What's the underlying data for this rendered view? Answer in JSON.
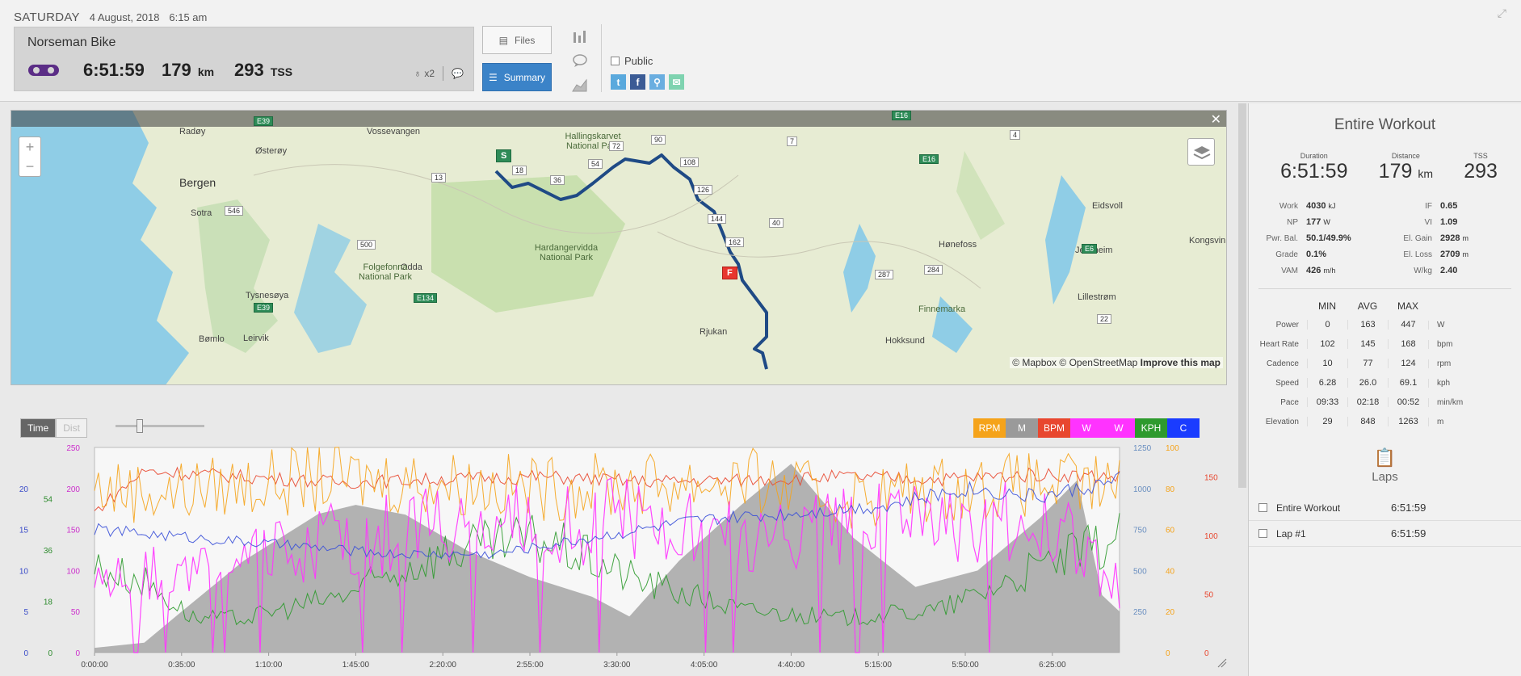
{
  "header": {
    "day": "SATURDAY",
    "date": "4 August, 2018",
    "time": "6:15 am",
    "workout_title": "Norseman Bike",
    "duration": "6:51:59",
    "distance": "179",
    "distance_unit": "km",
    "tss": "293",
    "tss_unit": "TSS",
    "equipment_count": "x2",
    "files_label": "Files",
    "summary_label": "Summary",
    "public_label": "Public"
  },
  "map": {
    "attribution_mapbox": "© Mapbox",
    "attribution_osm": "© OpenStreetMap",
    "improve_label": "Improve this map",
    "zoom_in": "+",
    "zoom_out": "−",
    "close": "✕",
    "places": [
      "Bergen",
      "Vossevangen",
      "Odda",
      "Rjukan",
      "Hønefoss",
      "Eidsvoll",
      "Jessheim",
      "Kongsvin",
      "Lillestrøm",
      "Østerøy",
      "Sotra",
      "Tysnesøya",
      "Leirvik",
      "Radøy",
      "Bømlo",
      "Hokksund"
    ],
    "parks": [
      "Hallingskarvet National Park",
      "Hardangervidda National Park",
      "Folgefonna National Park",
      "Finnemarka"
    ],
    "roads": [
      "E39",
      "E16",
      "E134",
      "E6",
      "13",
      "546",
      "500",
      "7",
      "4",
      "40",
      "287",
      "284",
      "22",
      "18",
      "36",
      "54",
      "72",
      "90",
      "108",
      "126",
      "144",
      "162"
    ],
    "start_marker": "S",
    "finish_marker": "F"
  },
  "chart": {
    "time_label": "Time",
    "dist_label": "Dist",
    "legend": [
      {
        "label": "RPM",
        "color": "#f5a31a"
      },
      {
        "label": "M",
        "color": "#9a9a9a"
      },
      {
        "label": "BPM",
        "color": "#e8472f"
      },
      {
        "label": "W",
        "color": "#ff33ff"
      },
      {
        "label": "W",
        "color": "#ff33ff"
      },
      {
        "label": "KPH",
        "color": "#2e9a2e"
      },
      {
        "label": "C",
        "color": "#1a3cff"
      }
    ]
  },
  "chart_data": {
    "type": "line",
    "x_ticks": [
      "0:00:00",
      "0:35:00",
      "1:10:00",
      "1:45:00",
      "2:20:00",
      "2:55:00",
      "3:30:00",
      "4:05:00",
      "4:40:00",
      "5:15:00",
      "5:50:00",
      "6:25:00"
    ],
    "x_range_min": [
      0,
      412
    ],
    "axes": [
      {
        "name": "C",
        "color": "#3a4cc8",
        "ticks": [
          "0",
          "5",
          "10",
          "15",
          "20"
        ],
        "range": [
          0,
          25
        ]
      },
      {
        "name": "KPH",
        "color": "#2e8b2e",
        "ticks": [
          "0",
          "18",
          "36",
          "54"
        ],
        "range": [
          0,
          72
        ]
      },
      {
        "name": "W",
        "color": "#cc2ecc",
        "ticks": [
          "0",
          "50",
          "100",
          "150",
          "200",
          "250"
        ],
        "range": [
          0,
          250
        ]
      },
      {
        "name": "M",
        "color": "#6a8fc0",
        "ticks": [
          "250",
          "500",
          "750",
          "1000",
          "1250"
        ],
        "range": [
          0,
          1250
        ]
      },
      {
        "name": "RPM",
        "color": "#f5a31a",
        "ticks": [
          "0",
          "20",
          "40",
          "60",
          "80",
          "100"
        ],
        "range": [
          0,
          100
        ]
      },
      {
        "name": "BPM",
        "color": "#e8472f",
        "ticks": [
          "0",
          "50",
          "100",
          "150"
        ],
        "range": [
          0,
          175
        ]
      }
    ],
    "series": [
      {
        "name": "M",
        "color": "#9a9a9a",
        "x": [
          0,
          20,
          35,
          60,
          90,
          105,
          125,
          150,
          175,
          200,
          215,
          235,
          260,
          280,
          305,
          330,
          355,
          380,
          395,
          405,
          412
        ],
        "y": [
          29,
          60,
          250,
          560,
          845,
          900,
          840,
          620,
          460,
          340,
          220,
          560,
          900,
          1150,
          700,
          400,
          500,
          820,
          1050,
          350,
          250
        ]
      },
      {
        "name": "BPM",
        "color": "#e8472f",
        "x": [
          0,
          20,
          60,
          100,
          140,
          180,
          220,
          260,
          300,
          340,
          380,
          412
        ],
        "y": [
          120,
          155,
          150,
          145,
          148,
          150,
          146,
          147,
          150,
          148,
          152,
          150
        ]
      },
      {
        "name": "RPM",
        "color": "#f5a31a",
        "x": [
          0,
          30,
          60,
          100,
          140,
          180,
          220,
          260,
          300,
          340,
          380,
          412
        ],
        "y": [
          80,
          78,
          82,
          85,
          83,
          80,
          82,
          84,
          75,
          80,
          82,
          80
        ]
      },
      {
        "name": "KPH",
        "color": "#2e9a2e",
        "x": [
          0,
          20,
          40,
          60,
          100,
          140,
          180,
          220,
          260,
          300,
          340,
          380,
          412
        ],
        "y": [
          30,
          25,
          12,
          12,
          20,
          35,
          40,
          25,
          15,
          12,
          15,
          30,
          40
        ]
      },
      {
        "name": "W",
        "color": "#ff33ff",
        "x": [
          0,
          30,
          60,
          100,
          140,
          180,
          220,
          260,
          300,
          340,
          380,
          412
        ],
        "y": [
          100,
          95,
          110,
          140,
          150,
          155,
          160,
          140,
          160,
          150,
          170,
          80
        ]
      },
      {
        "name": "C",
        "color": "#3a50d8",
        "x": [
          0,
          40,
          80,
          120,
          160,
          200,
          240,
          280,
          320,
          350,
          380,
          412
        ],
        "y": [
          15,
          14,
          13,
          12,
          12,
          14,
          16,
          17,
          18,
          20,
          19,
          21
        ]
      }
    ]
  },
  "panel": {
    "title": "Entire Workout",
    "top_stats": [
      {
        "label": "Duration",
        "value": "6:51:59",
        "unit": ""
      },
      {
        "label": "Distance",
        "value": "179",
        "unit": "km"
      },
      {
        "label": "TSS",
        "value": "293",
        "unit": ""
      }
    ],
    "kv": [
      {
        "l1": "Work",
        "v1": "4030",
        "u1": "kJ",
        "l2": "IF",
        "v2": "0.65",
        "u2": ""
      },
      {
        "l1": "NP",
        "v1": "177",
        "u1": "W",
        "l2": "VI",
        "v2": "1.09",
        "u2": ""
      },
      {
        "l1": "Pwr. Bal.",
        "v1": "50.1/49.9%",
        "u1": "",
        "l2": "El. Gain",
        "v2": "2928",
        "u2": "m"
      },
      {
        "l1": "Grade",
        "v1": "0.1%",
        "u1": "",
        "l2": "El. Loss",
        "v2": "2709",
        "u2": "m"
      },
      {
        "l1": "VAM",
        "v1": "426",
        "u1": "m/h",
        "l2": "W/kg",
        "v2": "2.40",
        "u2": ""
      }
    ],
    "mma_head": [
      "MIN",
      "AVG",
      "MAX"
    ],
    "mma": [
      {
        "name": "Power",
        "min": "0",
        "avg": "163",
        "max": "447",
        "unit": "W"
      },
      {
        "name": "Heart Rate",
        "min": "102",
        "avg": "145",
        "max": "168",
        "unit": "bpm"
      },
      {
        "name": "Cadence",
        "min": "10",
        "avg": "77",
        "max": "124",
        "unit": "rpm"
      },
      {
        "name": "Speed",
        "min": "6.28",
        "avg": "26.0",
        "max": "69.1",
        "unit": "kph"
      },
      {
        "name": "Pace",
        "min": "09:33",
        "avg": "02:18",
        "max": "00:52",
        "unit": "min/km"
      },
      {
        "name": "Elevation",
        "min": "29",
        "avg": "848",
        "max": "1263",
        "unit": "m"
      }
    ],
    "laps_title": "Laps",
    "laps": [
      {
        "name": "Entire Workout",
        "time": "6:51:59"
      },
      {
        "name": "Lap #1",
        "time": "6:51:59"
      }
    ]
  }
}
